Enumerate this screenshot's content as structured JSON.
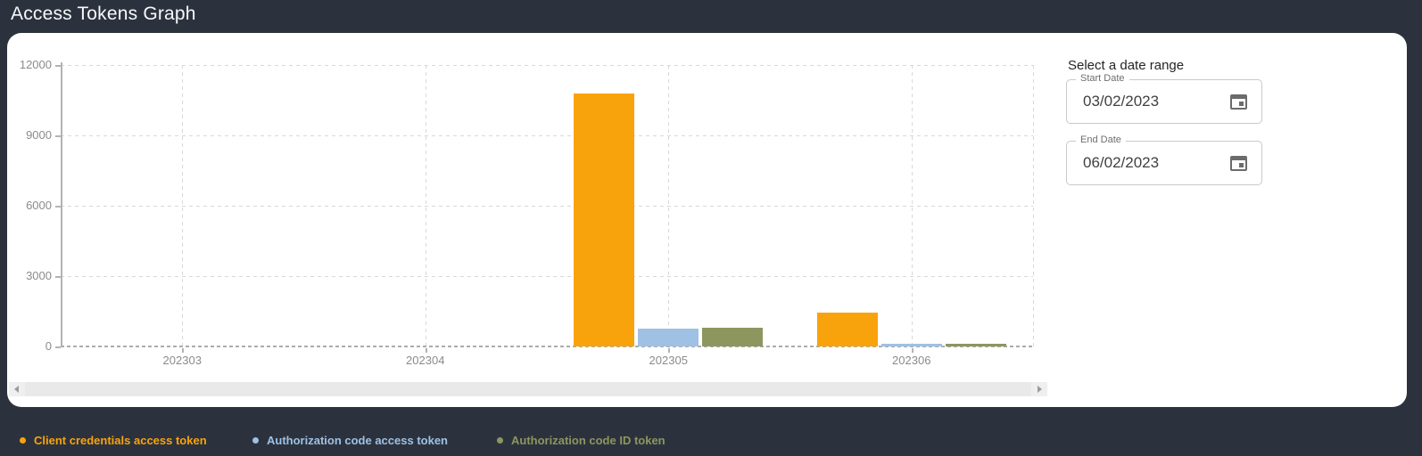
{
  "header": {
    "title": "Access Tokens Graph"
  },
  "chart_data": {
    "type": "bar",
    "title": "Access Tokens Graph",
    "categories": [
      "202303",
      "202304",
      "202305",
      "202306"
    ],
    "series": [
      {
        "name": "Client credentials access token",
        "color": "#F9A30C",
        "values": [
          0,
          0,
          10800,
          1440
        ]
      },
      {
        "name": "Authorization code access token",
        "color": "#9FC1E4",
        "values": [
          0,
          0,
          750,
          95
        ]
      },
      {
        "name": "Authorization code ID token",
        "color": "#8D965F",
        "values": [
          0,
          0,
          780,
          115
        ]
      }
    ],
    "xlabel": "",
    "ylabel": "",
    "ylim": [
      0,
      12000
    ],
    "yticks": [
      0,
      3000,
      6000,
      9000,
      12000
    ],
    "grid": true,
    "gridline_style": "dashed",
    "legend_position": "bottom"
  },
  "date_range": {
    "title": "Select a date range",
    "start": {
      "label": "Start Date",
      "value": "03/02/2023"
    },
    "end": {
      "label": "End Date",
      "value": "06/02/2023"
    }
  },
  "icons": {
    "calendar": "calendar-icon",
    "scrollbar_left": "triangle-left-icon",
    "scrollbar_right": "triangle-right-icon"
  },
  "colors": {
    "background": "#2C323D",
    "card": "#FFFFFF",
    "axis": "#B3B3B3",
    "gridline": "#D8D8D8",
    "axis_text": "#8B8B8B"
  }
}
